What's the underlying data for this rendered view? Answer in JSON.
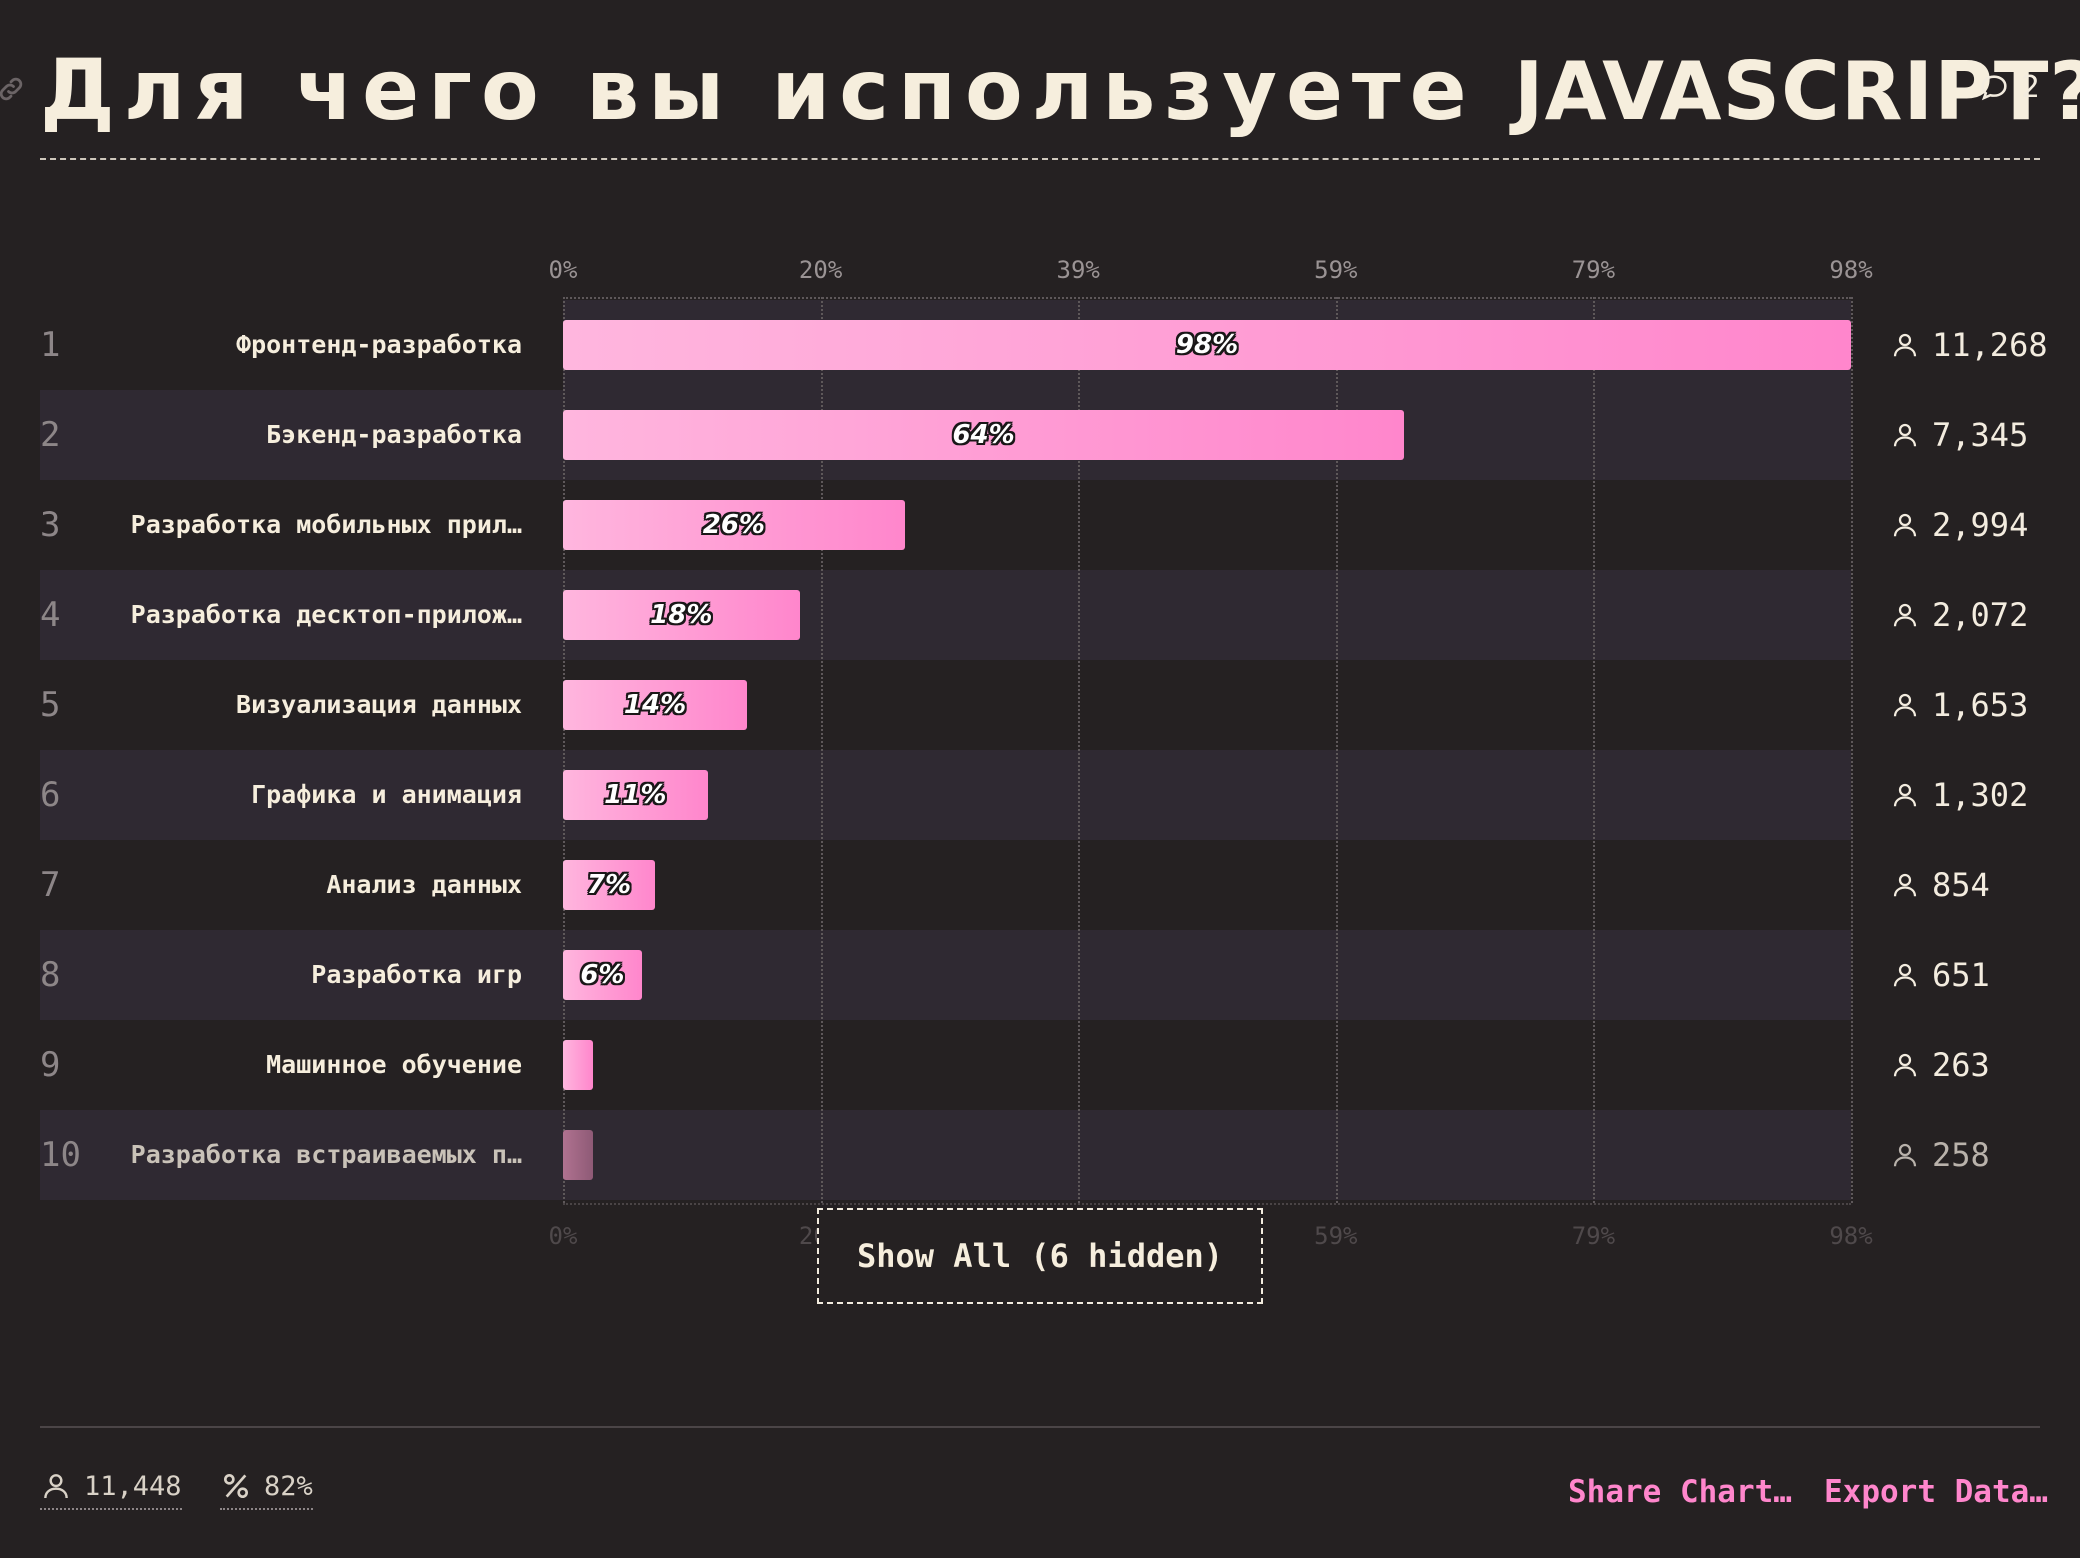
{
  "header": {
    "title_main": "Для чего вы используете",
    "title_accent": "JAVASCRIPT?",
    "comment_count": "2"
  },
  "chart_data": {
    "type": "bar",
    "orientation": "horizontal",
    "title": "Для чего вы используете JAVASCRIPT?",
    "x_ticks": [
      "0%",
      "20%",
      "39%",
      "59%",
      "79%",
      "98%"
    ],
    "xlim": [
      0,
      98
    ],
    "grid": true,
    "rows": [
      {
        "rank": "1",
        "label": "Фронтенд-разработка",
        "value": 98,
        "pct_label": "98%",
        "count": "11,268"
      },
      {
        "rank": "2",
        "label": "Бэкенд-разработка",
        "value": 64,
        "pct_label": "64%",
        "count": "7,345"
      },
      {
        "rank": "3",
        "label": "Разработка мобильных прил…",
        "value": 26,
        "pct_label": "26%",
        "count": "2,994"
      },
      {
        "rank": "4",
        "label": "Разработка десктоп-прилож…",
        "value": 18,
        "pct_label": "18%",
        "count": "2,072"
      },
      {
        "rank": "5",
        "label": "Визуализация данных",
        "value": 14,
        "pct_label": "14%",
        "count": "1,653"
      },
      {
        "rank": "6",
        "label": "Графика и анимация",
        "value": 11,
        "pct_label": "11%",
        "count": "1,302"
      },
      {
        "rank": "7",
        "label": "Анализ данных",
        "value": 7,
        "pct_label": "7%",
        "count": "854"
      },
      {
        "rank": "8",
        "label": "Разработка игр",
        "value": 6,
        "pct_label": "6%",
        "count": "651"
      },
      {
        "rank": "9",
        "label": "Машинное обучение",
        "value": 2.3,
        "pct_label": "",
        "count": "263"
      },
      {
        "rank": "10",
        "label": "Разработка встраиваемых п…",
        "value": 2.3,
        "pct_label": "",
        "count": "258"
      }
    ]
  },
  "show_all_label": "Show All (6 hidden)",
  "footer": {
    "respondents": "11,448",
    "percent": "82%",
    "share_label": "Share Chart…",
    "export_label": "Export Data…"
  },
  "colors": {
    "background": "#252122",
    "bar_start": "#ffb6de",
    "bar_end": "#ff86cc",
    "accent": "#ff86cc",
    "row_alt": "#2f2932"
  }
}
